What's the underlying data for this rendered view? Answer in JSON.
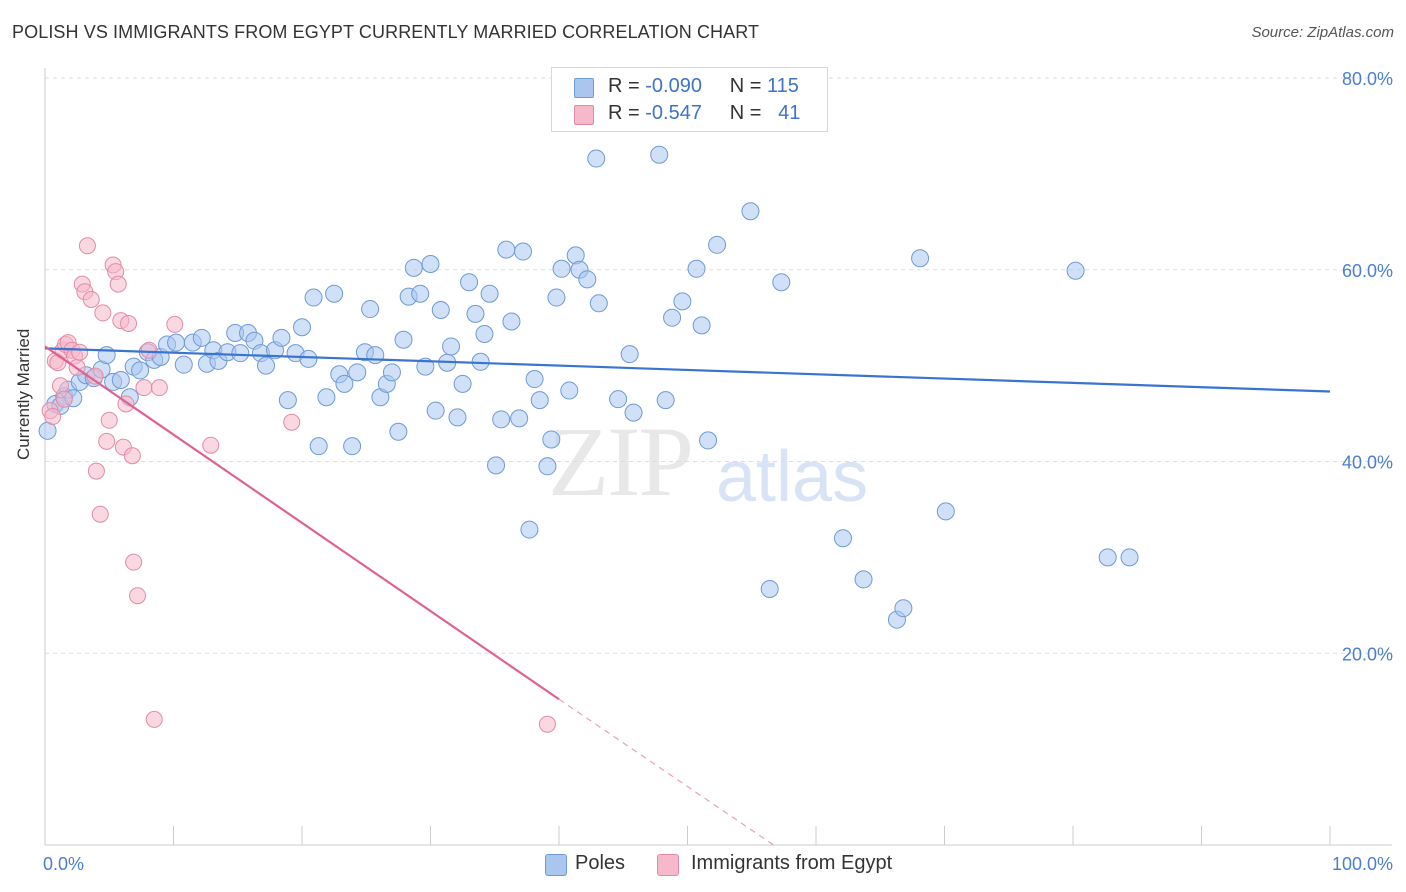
{
  "header": {
    "title": "POLISH VS IMMIGRANTS FROM EGYPT CURRENTLY MARRIED CORRELATION CHART",
    "source": "Source: ZipAtlas.com"
  },
  "watermark": {
    "zip": "ZIP",
    "atlas": "atlas"
  },
  "legend_top": {
    "rows": [
      {
        "r_label": "R =",
        "r_value": "-0.090",
        "n_label": "N =",
        "n_value": "115",
        "color": "#aac6ee",
        "border": "#6f9ad8"
      },
      {
        "r_label": "R =",
        "r_value": "-0.547",
        "n_label": "N =",
        "n_value": "41",
        "color": "#f6b8cb",
        "border": "#e58aa6"
      }
    ]
  },
  "legend_bottom": {
    "items": [
      {
        "label": "Poles",
        "color": "#aac6ee",
        "border": "#6f9ad8"
      },
      {
        "label": "Immigrants from Egypt",
        "color": "#f6b8cb",
        "border": "#e58aa6"
      }
    ]
  },
  "chart_data": {
    "type": "scatter",
    "title": "POLISH VS IMMIGRANTS FROM EGYPT CURRENTLY MARRIED CORRELATION CHART",
    "xlabel": "",
    "ylabel": "Currently Married",
    "xlim": [
      0,
      100
    ],
    "ylim": [
      0,
      80
    ],
    "x_ticks_labels": [
      "0.0%",
      "100.0%"
    ],
    "y_ticks": [
      20,
      40,
      60,
      80
    ],
    "y_tick_labels": [
      "20.0%",
      "40.0%",
      "60.0%",
      "80.0%"
    ],
    "grid": true,
    "legend_position": "top-center",
    "series": [
      {
        "name": "Poles",
        "color": "#6f9ad8",
        "fill": "#aac6ee",
        "trend": {
          "x": [
            0,
            100
          ],
          "y": [
            51.8,
            47.3
          ],
          "color": "#3a74d0"
        },
        "points": [
          [
            0.2,
            43.2
          ],
          [
            0.8,
            46.0
          ],
          [
            1.5,
            46.8
          ],
          [
            1.2,
            45.8
          ],
          [
            1.8,
            47.5
          ],
          [
            2.2,
            46.6
          ],
          [
            2.7,
            48.3
          ],
          [
            3.2,
            49.0
          ],
          [
            3.8,
            48.7
          ],
          [
            4.4,
            49.6
          ],
          [
            4.8,
            51.1
          ],
          [
            5.3,
            48.3
          ],
          [
            5.9,
            48.5
          ],
          [
            6.6,
            46.7
          ],
          [
            6.9,
            49.9
          ],
          [
            7.4,
            49.5
          ],
          [
            8.0,
            51.4
          ],
          [
            8.5,
            50.6
          ],
          [
            9.0,
            50.9
          ],
          [
            9.5,
            52.2
          ],
          [
            10.2,
            52.4
          ],
          [
            10.8,
            50.1
          ],
          [
            11.5,
            52.4
          ],
          [
            12.2,
            52.9
          ],
          [
            12.6,
            50.2
          ],
          [
            13.1,
            51.6
          ],
          [
            13.5,
            50.5
          ],
          [
            14.2,
            51.4
          ],
          [
            14.8,
            53.4
          ],
          [
            15.2,
            51.3
          ],
          [
            15.8,
            53.4
          ],
          [
            16.3,
            52.6
          ],
          [
            16.8,
            51.3
          ],
          [
            17.2,
            50.0
          ],
          [
            17.9,
            51.6
          ],
          [
            18.4,
            52.9
          ],
          [
            18.9,
            46.4
          ],
          [
            19.5,
            51.3
          ],
          [
            20.0,
            54.0
          ],
          [
            20.5,
            50.7
          ],
          [
            20.9,
            57.1
          ],
          [
            21.3,
            41.6
          ],
          [
            21.9,
            46.7
          ],
          [
            22.5,
            57.5
          ],
          [
            22.9,
            49.1
          ],
          [
            23.3,
            48.1
          ],
          [
            23.9,
            41.6
          ],
          [
            24.3,
            49.3
          ],
          [
            24.9,
            51.4
          ],
          [
            25.3,
            55.9
          ],
          [
            25.7,
            51.1
          ],
          [
            26.1,
            46.7
          ],
          [
            26.6,
            48.1
          ],
          [
            27.0,
            49.3
          ],
          [
            27.5,
            43.1
          ],
          [
            27.9,
            52.7
          ],
          [
            28.3,
            57.2
          ],
          [
            28.7,
            60.2
          ],
          [
            29.2,
            57.5
          ],
          [
            29.6,
            49.9
          ],
          [
            30.0,
            60.6
          ],
          [
            30.4,
            45.3
          ],
          [
            30.8,
            55.8
          ],
          [
            31.3,
            50.3
          ],
          [
            31.6,
            52.0
          ],
          [
            32.1,
            44.6
          ],
          [
            32.5,
            48.1
          ],
          [
            33.0,
            58.7
          ],
          [
            33.5,
            55.4
          ],
          [
            33.9,
            50.4
          ],
          [
            34.2,
            53.3
          ],
          [
            34.6,
            57.5
          ],
          [
            35.1,
            39.6
          ],
          [
            35.5,
            44.4
          ],
          [
            35.9,
            62.1
          ],
          [
            36.3,
            54.6
          ],
          [
            36.9,
            44.5
          ],
          [
            37.2,
            61.9
          ],
          [
            37.7,
            32.9
          ],
          [
            38.1,
            48.6
          ],
          [
            38.5,
            46.4
          ],
          [
            39.1,
            39.5
          ],
          [
            39.4,
            42.3
          ],
          [
            39.8,
            57.1
          ],
          [
            40.2,
            60.1
          ],
          [
            40.8,
            47.4
          ],
          [
            41.3,
            61.5
          ],
          [
            41.6,
            60.0
          ],
          [
            42.2,
            59.0
          ],
          [
            42.9,
            71.6
          ],
          [
            43.1,
            56.5
          ],
          [
            43.6,
            78.3
          ],
          [
            44.6,
            46.5
          ],
          [
            45.5,
            51.2
          ],
          [
            45.8,
            45.1
          ],
          [
            47.8,
            72.0
          ],
          [
            48.3,
            46.4
          ],
          [
            48.8,
            55.0
          ],
          [
            49.6,
            56.7
          ],
          [
            50.7,
            60.1
          ],
          [
            51.1,
            54.2
          ],
          [
            51.6,
            42.2
          ],
          [
            52.3,
            62.6
          ],
          [
            54.9,
            66.1
          ],
          [
            56.4,
            26.7
          ],
          [
            57.3,
            58.7
          ],
          [
            62.1,
            32.0
          ],
          [
            63.7,
            27.7
          ],
          [
            66.3,
            23.5
          ],
          [
            66.8,
            24.7
          ],
          [
            68.1,
            61.2
          ],
          [
            70.1,
            34.8
          ],
          [
            80.2,
            59.9
          ],
          [
            84.4,
            30.0
          ],
          [
            82.7,
            30.0
          ]
        ]
      },
      {
        "name": "Immigrants from Egypt",
        "color": "#e58aa6",
        "fill": "#f6b8cb",
        "trend_solid": {
          "x": [
            0,
            40.0
          ],
          "y": [
            52.0,
            15.2
          ],
          "color": "#e06292"
        },
        "trend_dashed": {
          "x": [
            40.0,
            56.7
          ],
          "y": [
            15.2,
            0.0
          ],
          "color": "#e8a1b9"
        },
        "points": [
          [
            0.4,
            45.3
          ],
          [
            0.6,
            44.7
          ],
          [
            0.8,
            50.5
          ],
          [
            1.0,
            50.3
          ],
          [
            1.2,
            47.9
          ],
          [
            1.4,
            51.6
          ],
          [
            1.6,
            52.2
          ],
          [
            1.8,
            52.4
          ],
          [
            2.1,
            51.6
          ],
          [
            2.3,
            51.0
          ],
          [
            2.5,
            49.8
          ],
          [
            2.7,
            51.4
          ],
          [
            2.9,
            58.5
          ],
          [
            3.1,
            57.7
          ],
          [
            3.3,
            62.5
          ],
          [
            3.6,
            56.9
          ],
          [
            3.9,
            48.9
          ],
          [
            4.0,
            39.0
          ],
          [
            4.3,
            34.5
          ],
          [
            4.5,
            55.5
          ],
          [
            4.8,
            42.1
          ],
          [
            5.0,
            44.3
          ],
          [
            5.3,
            60.5
          ],
          [
            5.5,
            59.8
          ],
          [
            5.7,
            58.5
          ],
          [
            5.9,
            54.7
          ],
          [
            6.1,
            41.5
          ],
          [
            6.3,
            46.0
          ],
          [
            6.5,
            54.4
          ],
          [
            6.8,
            40.6
          ],
          [
            6.9,
            29.5
          ],
          [
            7.2,
            26.0
          ],
          [
            7.7,
            47.7
          ],
          [
            8.1,
            51.6
          ],
          [
            8.5,
            13.1
          ],
          [
            8.9,
            47.7
          ],
          [
            10.1,
            54.3
          ],
          [
            12.9,
            41.7
          ],
          [
            19.2,
            44.1
          ],
          [
            39.1,
            12.6
          ],
          [
            1.5,
            46.5
          ]
        ]
      }
    ]
  }
}
